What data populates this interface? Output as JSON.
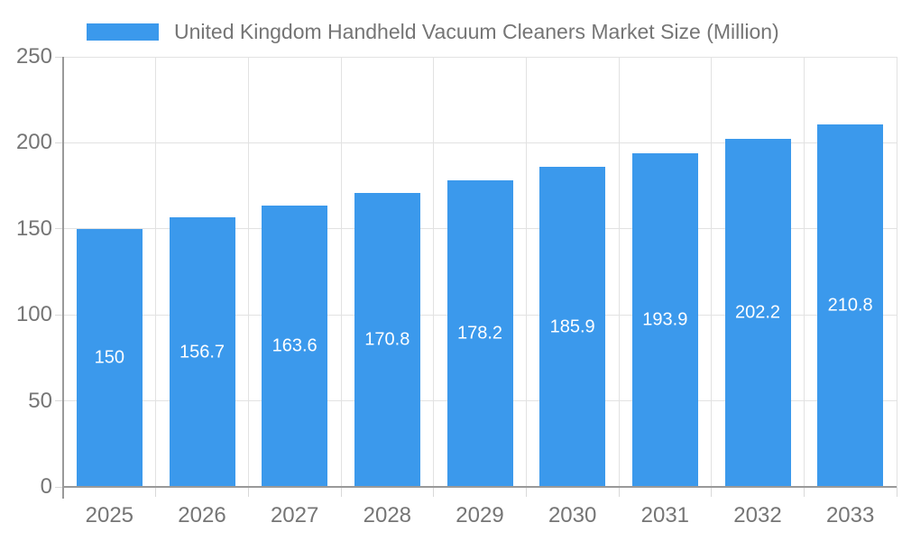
{
  "legend": {
    "position": "top"
  },
  "colors": {
    "bar": "#3B99EC",
    "grid": "#E2E2E2",
    "axis_line": "#999999",
    "axis_text": "#757575",
    "value_label": "#FFFFFF",
    "background": "#FFFFFF"
  },
  "chart_data": {
    "type": "bar",
    "categories": [
      "2025",
      "2026",
      "2027",
      "2028",
      "2029",
      "2030",
      "2031",
      "2032",
      "2033"
    ],
    "series": [
      {
        "name": "United Kingdom Handheld Vacuum Cleaners Market Size (Million)",
        "values": [
          150,
          156.7,
          163.6,
          170.8,
          178.2,
          185.9,
          193.9,
          202.2,
          210.8
        ]
      }
    ],
    "title": "",
    "xlabel": "",
    "ylabel": "",
    "ylim": [
      0,
      250
    ],
    "yticks": [
      0,
      50,
      100,
      150,
      200,
      250
    ],
    "grid": true,
    "legend_position": "top",
    "bar_color": "#3B99EC",
    "value_labels_inside_bars": true
  }
}
